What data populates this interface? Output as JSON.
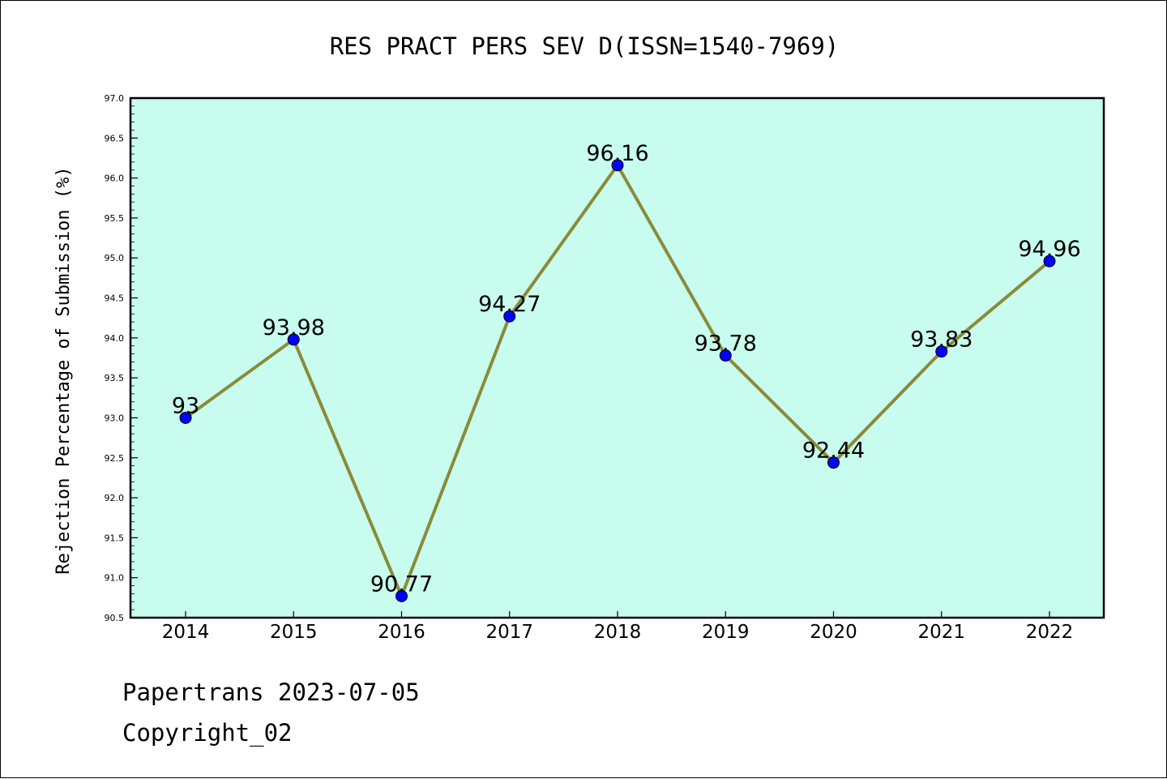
{
  "chart_data": {
    "type": "line",
    "title": "RES PRACT PERS SEV D(ISSN=1540-7969)",
    "xlabel": "",
    "ylabel": "Rejection Percentage of Submission (%)",
    "categories": [
      "2014",
      "2015",
      "2016",
      "2017",
      "2018",
      "2019",
      "2020",
      "2021",
      "2022"
    ],
    "series": [
      {
        "values": [
          93,
          93.98,
          90.77,
          94.27,
          96.16,
          93.78,
          92.44,
          93.83,
          94.96
        ],
        "labels": [
          "93",
          "93.98",
          "90.77",
          "94.27",
          "96.16",
          "93.78",
          "92.44",
          "93.83",
          "94.96"
        ]
      }
    ],
    "ylim": [
      90.5,
      97.0
    ],
    "yticks": [
      "90.5",
      "91.0",
      "91.5",
      "92.0",
      "92.5",
      "93.0",
      "93.5",
      "94.0",
      "94.5",
      "95.0",
      "95.5",
      "96.0",
      "96.5",
      "97.0"
    ],
    "grid": false,
    "colors": {
      "plot_background": "#c8fcee",
      "line": "#8b8a3a",
      "marker": "#0000ff"
    }
  },
  "footer": {
    "line1": "Papertrans 2023-07-05",
    "line2": "Copyright_02"
  }
}
